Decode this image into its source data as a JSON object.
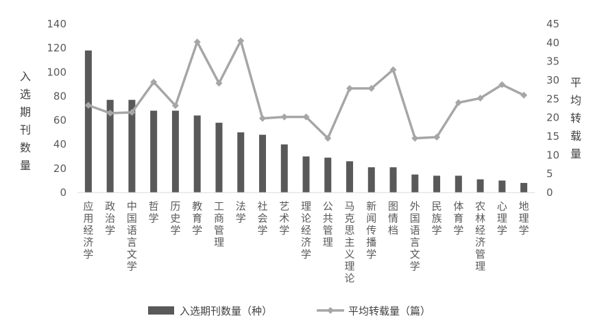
{
  "chart_data": {
    "type": "bar",
    "categories": [
      "应用经济学",
      "政治学",
      "中国语言文学",
      "哲学",
      "历史学",
      "教育学",
      "工商管理",
      "法学",
      "社会学",
      "艺术学",
      "理论经济学",
      "公共管理",
      "马克思主义理论",
      "新闻传播学",
      "图情档",
      "外国语言文学",
      "民族学",
      "体育学",
      "农林经济管理",
      "心理学",
      "地理学"
    ],
    "series": [
      {
        "name": "入选期刊数量（种）",
        "type": "bar",
        "axis": "left",
        "values": [
          118,
          77,
          77,
          68,
          68,
          64,
          58,
          50,
          48,
          40,
          30,
          29,
          26,
          21,
          21,
          15,
          14,
          14,
          11,
          10,
          8
        ],
        "color": "#595959"
      },
      {
        "name": "平均转载量（篇）",
        "type": "line",
        "axis": "right",
        "values": [
          23.3,
          21.2,
          21.4,
          29.5,
          23.2,
          40.2,
          29.2,
          40.5,
          19.8,
          20.2,
          20.2,
          14.5,
          27.8,
          27.8,
          32.8,
          14.5,
          14.8,
          24.0,
          25.2,
          28.8,
          26.0
        ],
        "color": "#a6a6a6"
      }
    ],
    "ylabel": "入选期刊数量",
    "y2label": "平均转载量",
    "ylim": [
      0,
      140
    ],
    "y2lim": [
      0,
      45
    ],
    "yticks": [
      0,
      20,
      40,
      60,
      80,
      100,
      120,
      140
    ],
    "y2ticks": [
      0,
      5,
      10,
      15,
      20,
      25,
      30,
      35,
      40,
      45
    ],
    "grid": false,
    "legend_position": "bottom"
  }
}
